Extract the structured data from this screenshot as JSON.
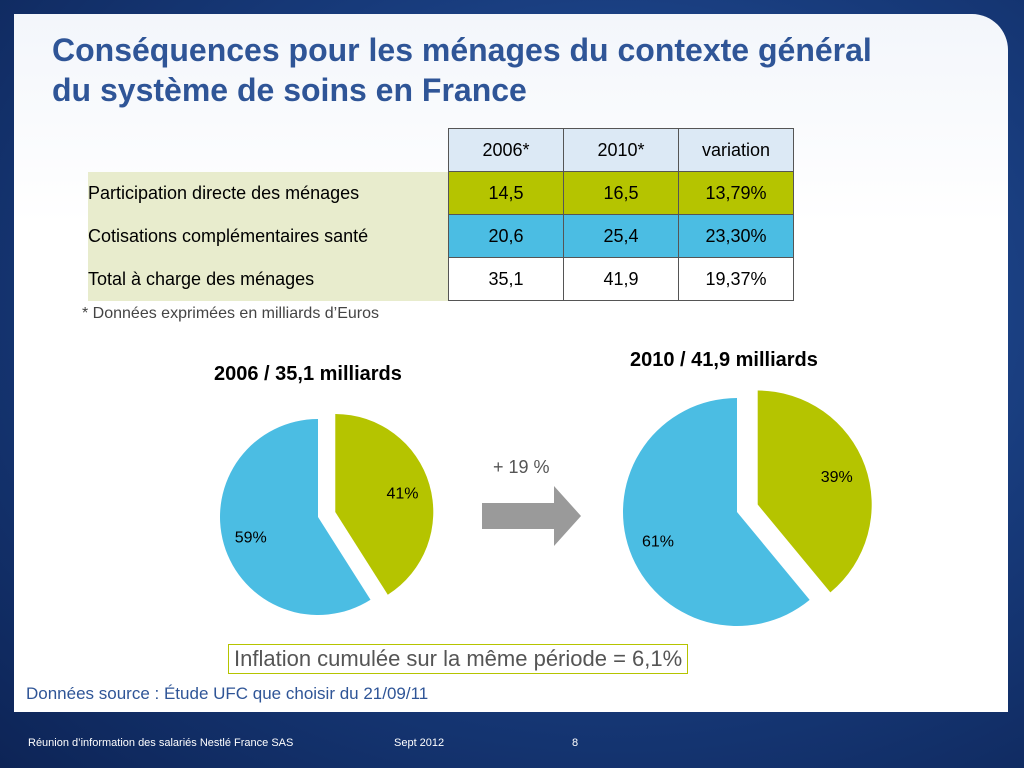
{
  "title_lines": [
    "Conséquences pour les ménages du contexte général",
    "du système de soins en France"
  ],
  "table": {
    "headers": [
      "2006*",
      "2010*",
      "variation"
    ],
    "rows": [
      {
        "label": "Participation directe des ménages",
        "v2006": "14,5",
        "v2010": "16,5",
        "variation": "13,79%"
      },
      {
        "label": "Cotisations complémentaires santé",
        "v2006": "20,6",
        "v2010": "25,4",
        "variation": "23,30%"
      },
      {
        "label": "Total à charge des ménages",
        "v2006": "35,1",
        "v2010": "41,9",
        "variation": "19,37%"
      }
    ]
  },
  "footnote": "* Données exprimées en milliards d’Euros",
  "growth_label": "+ 19 %",
  "inflation_note": "Inflation cumulée sur la même période = 6,1%",
  "source": "Données source : Étude UFC que choisir du 21/09/11",
  "footer": {
    "left": "Réunion d’information des salariés Nestlé France SAS",
    "date": "Sept 2012",
    "page": "8"
  },
  "colors": {
    "green": "#b5c400",
    "blue": "#4bbde3",
    "title": "#2f5597",
    "arrow": "#9a9a9a"
  },
  "chart_data": [
    {
      "type": "pie",
      "title": "2006 / 35,1 milliards",
      "slices": [
        {
          "value": 41,
          "label": "41%",
          "color": "#b5c400",
          "exploded": true
        },
        {
          "value": 59,
          "label": "59%",
          "color": "#4bbde3",
          "exploded": false
        }
      ]
    },
    {
      "type": "pie",
      "title": "2010 / 41,9 milliards",
      "slices": [
        {
          "value": 39,
          "label": "39%",
          "color": "#b5c400",
          "exploded": true
        },
        {
          "value": 61,
          "label": "61%",
          "color": "#4bbde3",
          "exploded": false
        }
      ]
    }
  ]
}
